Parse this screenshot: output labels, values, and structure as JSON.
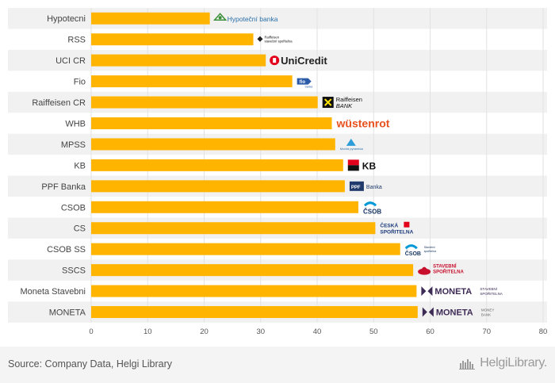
{
  "chart_data": {
    "type": "bar",
    "orientation": "horizontal",
    "categories": [
      "Hypotecni",
      "RSS",
      "UCI CR",
      "Fio",
      "Raiffeisen CR",
      "WHB",
      "MPSS",
      "KB",
      "PPF Banka",
      "CSOB",
      "CS",
      "CSOB SS",
      "SSCS",
      "Moneta Stavebni",
      "MONETA"
    ],
    "values": [
      21.0,
      28.7,
      30.9,
      35.6,
      40.1,
      42.6,
      43.2,
      44.6,
      44.9,
      47.3,
      50.3,
      54.7,
      57.0,
      57.6,
      57.8
    ],
    "xlim": [
      0,
      80
    ],
    "xticks": [
      0,
      10,
      20,
      30,
      40,
      50,
      60,
      70,
      80
    ],
    "grid": true,
    "bar_color": "#ffb400",
    "stripe_color": "#f1f1f1",
    "logos": [
      {
        "icon": "hypotecni-banka-logo",
        "text": "Hypoteční banka"
      },
      {
        "icon": "rss-logo",
        "text": "Raiffeisen stavební spořitelna"
      },
      {
        "icon": "unicredit-logo",
        "text": "UniCredit"
      },
      {
        "icon": "fio-logo",
        "text": "Fio banka"
      },
      {
        "icon": "raiffeisen-logo",
        "text": "Raiffeisen BANK"
      },
      {
        "icon": "wustenrot-logo",
        "text": "wüstenrot"
      },
      {
        "icon": "mpss-logo",
        "text": "Modrá pyramida"
      },
      {
        "icon": "kb-logo",
        "text": "KB"
      },
      {
        "icon": "ppf-logo",
        "text": "PPF Banka"
      },
      {
        "icon": "csob-logo",
        "text": "ČSOB"
      },
      {
        "icon": "ceska-sporitelna-logo",
        "text": "ČESKÁ SPOŘITELNA"
      },
      {
        "icon": "csob-ss-logo",
        "text": "ČSOB Stavební spořitelna"
      },
      {
        "icon": "sscs-logo",
        "text": "STAVEBNÍ SPOŘITELNA"
      },
      {
        "icon": "moneta-stavebni-logo",
        "text": "MONETA STAVEBNÍ SPOŘITELNA"
      },
      {
        "icon": "moneta-logo",
        "text": "MONETA MONEY BANK"
      }
    ]
  },
  "footer": {
    "source": "Source: Company Data, Helgi Library",
    "brand": "HelgiLibrary."
  },
  "colors": {
    "brand_gray": "#9a9a9a",
    "unicredit_red": "#e2001a",
    "wustenrot_orange": "#e8501d",
    "csob_blue": "#0099d8",
    "moneta_purple": "#3d2b56"
  }
}
